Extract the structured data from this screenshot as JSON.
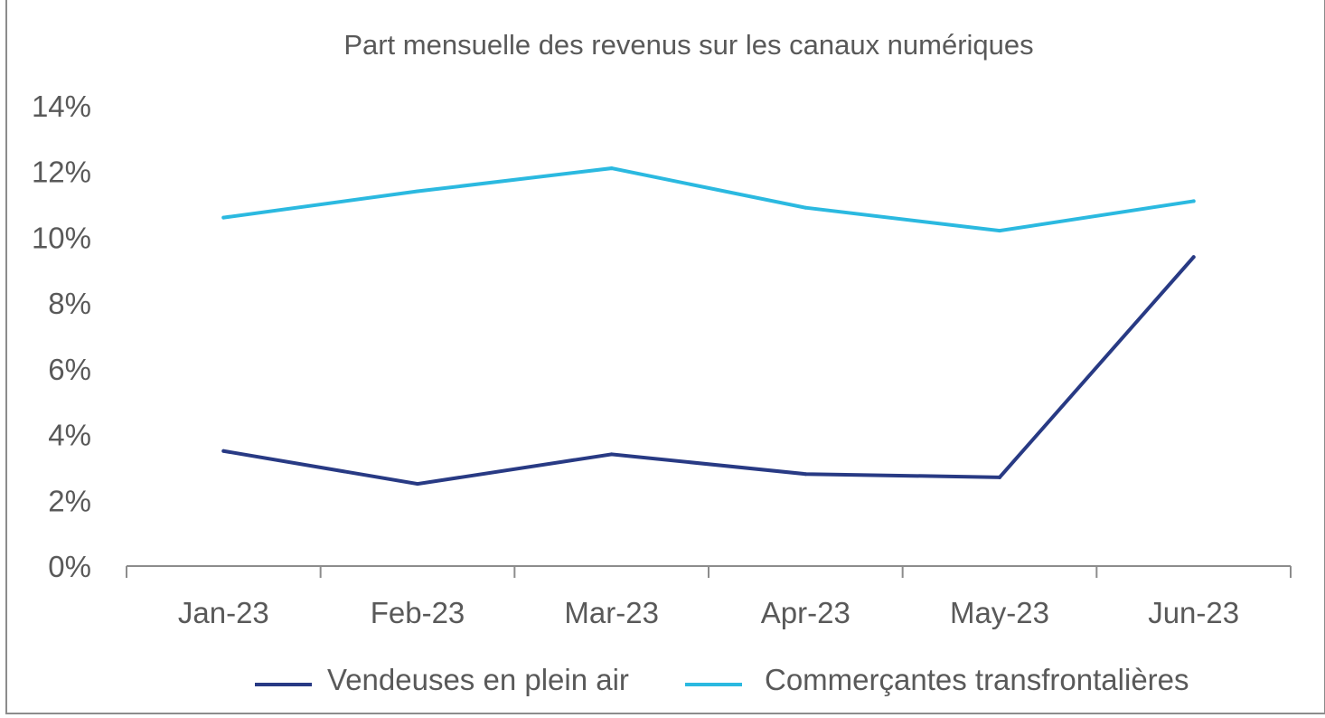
{
  "chart_data": {
    "type": "line",
    "title": "Part mensuelle des revenus sur les canaux numériques",
    "xlabel": "",
    "ylabel": "",
    "categories": [
      "Jan-23",
      "Feb-23",
      "Mar-23",
      "Apr-23",
      "May-23",
      "Jun-23"
    ],
    "ylim": [
      0,
      14
    ],
    "yticks": [
      0,
      2,
      4,
      6,
      8,
      10,
      12,
      14
    ],
    "ytick_labels": [
      "0%",
      "2%",
      "4%",
      "6%",
      "8%",
      "10%",
      "12%",
      "14%"
    ],
    "grid": false,
    "legend_position": "bottom",
    "series": [
      {
        "name": "Vendeuses en plein air",
        "color": "#283a84",
        "values": [
          3.5,
          2.5,
          3.4,
          2.8,
          2.7,
          9.4
        ]
      },
      {
        "name": "Commerçantes transfrontalières",
        "color": "#2bb9e0",
        "values": [
          10.6,
          11.4,
          12.1,
          10.9,
          10.2,
          11.1
        ]
      }
    ]
  }
}
